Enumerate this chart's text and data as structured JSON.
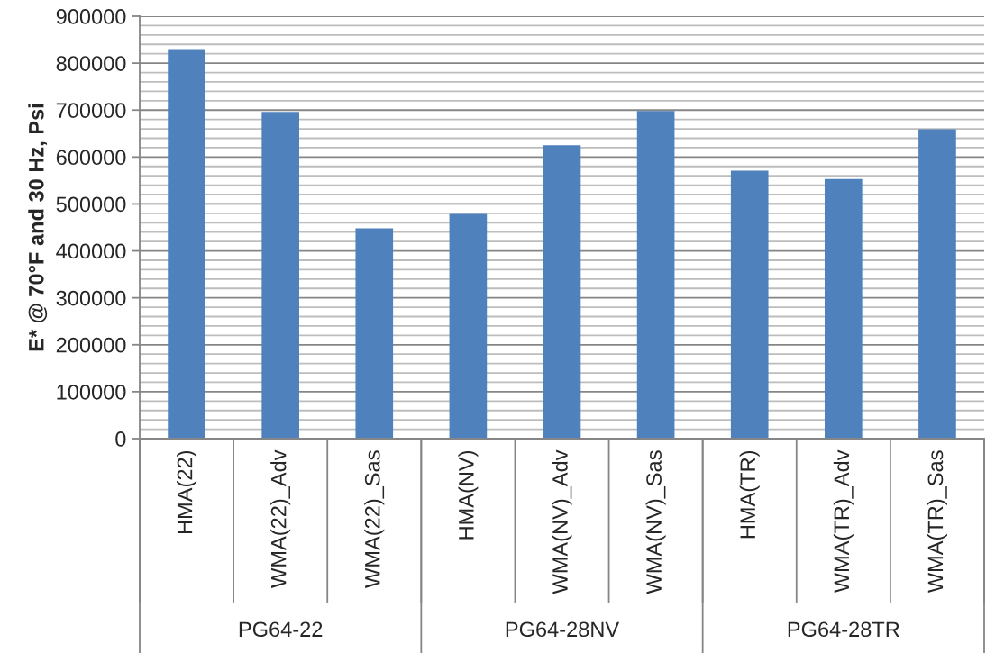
{
  "chart_data": {
    "type": "bar",
    "ylabel": "E* @ 70°F and 30 Hz, Psi",
    "categories": [
      "HMA(22)",
      "WMA(22)_Adv",
      "WMA(22)_Sas",
      "HMA(NV)",
      "WMA(NV)_Adv",
      "WMA(NV)_Sas",
      "HMA(TR)",
      "WMA(TR)_Adv",
      "WMA(TR)_Sas"
    ],
    "values": [
      830000,
      696000,
      448000,
      479000,
      625000,
      698000,
      571000,
      553000,
      659000
    ],
    "color": "#4f81bd",
    "ylim": [
      0,
      900000
    ],
    "yticks": [
      0,
      {
        "value": 20000,
        "label": null
      },
      {
        "value": 40000,
        "label": null
      },
      {
        "value": 60000,
        "label": null
      },
      {
        "value": 80000,
        "label": null
      },
      100000,
      {
        "value": 120000,
        "label": null
      },
      {
        "value": 140000,
        "label": null
      },
      {
        "value": 160000,
        "label": null
      },
      {
        "value": 180000,
        "label": null
      },
      200000,
      {
        "value": 220000,
        "label": null
      },
      {
        "value": 240000,
        "label": null
      },
      {
        "value": 260000,
        "label": null
      },
      {
        "value": 280000,
        "label": null
      },
      300000,
      {
        "value": 320000,
        "label": null
      },
      {
        "value": 340000,
        "label": null
      },
      {
        "value": 360000,
        "label": null
      },
      {
        "value": 380000,
        "label": null
      },
      400000,
      {
        "value": 420000,
        "label": null
      },
      {
        "value": 440000,
        "label": null
      },
      {
        "value": 460000,
        "label": null
      },
      {
        "value": 480000,
        "label": null
      },
      500000,
      {
        "value": 520000,
        "label": null
      },
      {
        "value": 540000,
        "label": null
      },
      {
        "value": 560000,
        "label": null
      },
      {
        "value": 580000,
        "label": null
      },
      600000,
      {
        "value": 620000,
        "label": null
      },
      {
        "value": 640000,
        "label": null
      },
      {
        "value": 660000,
        "label": null
      },
      {
        "value": 680000,
        "label": null
      },
      700000,
      {
        "value": 720000,
        "label": null
      },
      {
        "value": 740000,
        "label": null
      },
      {
        "value": 760000,
        "label": null
      },
      {
        "value": 780000,
        "label": null
      },
      800000,
      {
        "value": 820000,
        "label": null
      },
      {
        "value": 840000,
        "label": null
      },
      {
        "value": 860000,
        "label": null
      },
      {
        "value": 880000,
        "label": null
      },
      900000
    ],
    "grid": "y",
    "annotations": [
      "PG64-22",
      "PG64-28NV",
      "PG64-28TR"
    ]
  }
}
